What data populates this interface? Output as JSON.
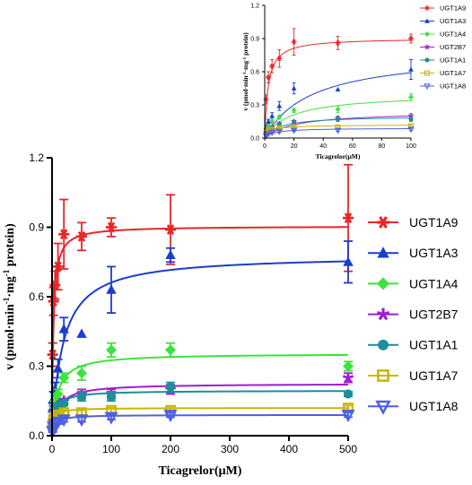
{
  "chart_data": [
    {
      "type": "scatter",
      "panel": "main",
      "xlabel": "Ticagrelor(μM)",
      "ylabel_parts": [
        "v (pmol·min",
        "-1",
        "·mg",
        "-1",
        " protein)"
      ],
      "xlim": [
        0,
        500
      ],
      "ylim": [
        0,
        1.2
      ],
      "xticks": [
        0,
        100,
        200,
        300,
        400,
        500
      ],
      "yticks": [
        0.0,
        0.3,
        0.6,
        0.9,
        1.2
      ],
      "xtick_labels": [
        "0",
        "100",
        "200",
        "300",
        "400",
        "500"
      ],
      "ytick_labels": [
        "0.0",
        "0.3",
        "0.6",
        "0.9",
        "1.2"
      ],
      "legend_position": "right",
      "x": [
        1,
        2.5,
        5,
        10,
        20,
        50,
        100,
        200,
        500
      ],
      "series": [
        {
          "name": "UGT1A9",
          "color": "#e8262a",
          "marker": "star",
          "values": [
            0.35,
            0.58,
            0.65,
            0.73,
            0.87,
            0.86,
            0.9,
            0.89,
            0.94
          ],
          "errors": [
            0.05,
            0.06,
            0.06,
            0.1,
            0.15,
            0.06,
            0.04,
            0.15,
            0.23
          ],
          "fit": {
            "vmax": 0.905,
            "km": 2.3
          }
        },
        {
          "name": "UGT1A3",
          "color": "#1c3ccf",
          "marker": "triangle",
          "values": [
            0.12,
            0.16,
            0.2,
            0.29,
            0.46,
            0.44,
            0.63,
            0.78,
            0.75
          ],
          "errors": [
            0.02,
            0.03,
            0.03,
            0.04,
            0.05,
            0.0,
            0.1,
            0.03,
            0.09
          ],
          "fit": {
            "vmax": 0.78,
            "km": 18
          }
        },
        {
          "name": "UGT1A4",
          "color": "#3de33d",
          "marker": "diamond",
          "values": [
            0.05,
            0.1,
            0.15,
            0.18,
            0.25,
            0.27,
            0.37,
            0.37,
            0.3
          ],
          "errors": [
            0.01,
            0.02,
            0.02,
            0.02,
            0.02,
            0.03,
            0.03,
            0.03,
            0.02
          ],
          "fit": {
            "vmax": 0.355,
            "km": 9
          }
        },
        {
          "name": "UGT2B7",
          "color": "#a21cd1",
          "marker": "asterisk",
          "values": [
            0.04,
            0.07,
            0.1,
            0.13,
            0.15,
            0.18,
            0.18,
            0.2,
            0.25
          ],
          "errors": [
            0.01,
            0.01,
            0.01,
            0.01,
            0.01,
            0.02,
            0.02,
            0.02,
            0.02
          ],
          "fit": {
            "vmax": 0.225,
            "km": 10
          }
        },
        {
          "name": "UGT1A1",
          "color": "#1b8f9a",
          "marker": "circle",
          "values": [
            0.03,
            0.06,
            0.09,
            0.13,
            0.14,
            0.17,
            0.17,
            0.21,
            0.18
          ],
          "errors": [
            0.01,
            0.01,
            0.01,
            0.01,
            0.01,
            0.02,
            0.02,
            0.02,
            0.01
          ],
          "fit": {
            "vmax": 0.195,
            "km": 6
          }
        },
        {
          "name": "UGT1A7",
          "color": "#c9b600",
          "marker": "square",
          "values": [
            0.05,
            0.07,
            0.08,
            0.09,
            0.1,
            0.1,
            0.11,
            0.11,
            0.12
          ],
          "errors": [
            0.01,
            0.01,
            0.01,
            0.01,
            0.01,
            0.01,
            0.01,
            0.01,
            0.01
          ],
          "fit": {
            "vmax": 0.12,
            "km": 3
          }
        },
        {
          "name": "UGT1A8",
          "color": "#4d5fe6",
          "marker": "triangle-down",
          "values": [
            0.02,
            0.04,
            0.05,
            0.06,
            0.07,
            0.07,
            0.08,
            0.09,
            0.09
          ],
          "errors": [
            0.005,
            0.005,
            0.005,
            0.01,
            0.01,
            0.01,
            0.01,
            0.01,
            0.01
          ],
          "fit": {
            "vmax": 0.09,
            "km": 5
          }
        }
      ]
    },
    {
      "type": "scatter",
      "panel": "inset",
      "xlabel": "Ticagrelor(μM)",
      "ylabel_parts": [
        "v (pmol·min",
        "-1",
        "·mg",
        "-1",
        " protein)"
      ],
      "xlim": [
        0,
        100
      ],
      "ylim": [
        0,
        1.2
      ],
      "xticks": [
        0,
        20,
        40,
        60,
        80,
        100
      ],
      "yticks": [
        0.0,
        0.3,
        0.6,
        0.9,
        1.2
      ],
      "xtick_labels": [
        "0",
        "20",
        "40",
        "60",
        "80",
        "100"
      ],
      "ytick_labels": [
        "0.0",
        "0.3",
        "0.6",
        "0.9",
        "1.2"
      ],
      "legend_position": "right",
      "x": [
        1,
        2.5,
        5,
        10,
        20,
        50,
        100
      ],
      "series": [
        {
          "name": "UGT1A9",
          "color": "#e8262a",
          "marker": "star",
          "values": [
            0.35,
            0.55,
            0.65,
            0.72,
            0.87,
            0.86,
            0.9
          ],
          "errors": [
            0.04,
            0.05,
            0.06,
            0.08,
            0.12,
            0.06,
            0.04
          ],
          "fit": {
            "vmax": 0.905,
            "km": 2.3
          }
        },
        {
          "name": "UGT1A3",
          "color": "#1c3ccf",
          "marker": "triangle",
          "values": [
            0.1,
            0.15,
            0.2,
            0.29,
            0.45,
            0.44,
            0.62
          ],
          "errors": [
            0.02,
            0.02,
            0.03,
            0.04,
            0.05,
            0.0,
            0.09
          ],
          "fit": {
            "vmax": 0.78,
            "km": 32
          }
        },
        {
          "name": "UGT1A4",
          "color": "#3de33d",
          "marker": "diamond",
          "values": [
            0.05,
            0.1,
            0.15,
            0.19,
            0.25,
            0.26,
            0.37
          ],
          "errors": [
            0.01,
            0.02,
            0.02,
            0.02,
            0.02,
            0.03,
            0.03
          ],
          "fit": {
            "vmax": 0.4,
            "km": 18
          }
        },
        {
          "name": "UGT2B7",
          "color": "#a21cd1",
          "marker": "asterisk",
          "values": [
            0.04,
            0.07,
            0.1,
            0.13,
            0.15,
            0.18,
            0.2
          ],
          "errors": [
            0.01,
            0.01,
            0.01,
            0.01,
            0.01,
            0.02,
            0.02
          ],
          "fit": {
            "vmax": 0.24,
            "km": 20
          }
        },
        {
          "name": "UGT1A1",
          "color": "#1b8f9a",
          "marker": "circle",
          "values": [
            0.03,
            0.06,
            0.09,
            0.12,
            0.14,
            0.17,
            0.17
          ],
          "errors": [
            0.01,
            0.01,
            0.01,
            0.01,
            0.01,
            0.02,
            0.02
          ],
          "fit": {
            "vmax": 0.2,
            "km": 10
          }
        },
        {
          "name": "UGT1A7",
          "color": "#c9b600",
          "marker": "square",
          "values": [
            0.05,
            0.07,
            0.08,
            0.09,
            0.1,
            0.1,
            0.11
          ],
          "errors": [
            0.01,
            0.01,
            0.01,
            0.01,
            0.01,
            0.01,
            0.01
          ],
          "fit": {
            "vmax": 0.12,
            "km": 4
          }
        },
        {
          "name": "UGT1A8",
          "color": "#4d5fe6",
          "marker": "triangle-down",
          "values": [
            0.02,
            0.04,
            0.05,
            0.06,
            0.07,
            0.07,
            0.08
          ],
          "errors": [
            0.005,
            0.005,
            0.005,
            0.01,
            0.01,
            0.01,
            0.01
          ],
          "fit": {
            "vmax": 0.09,
            "km": 6
          }
        }
      ]
    }
  ]
}
